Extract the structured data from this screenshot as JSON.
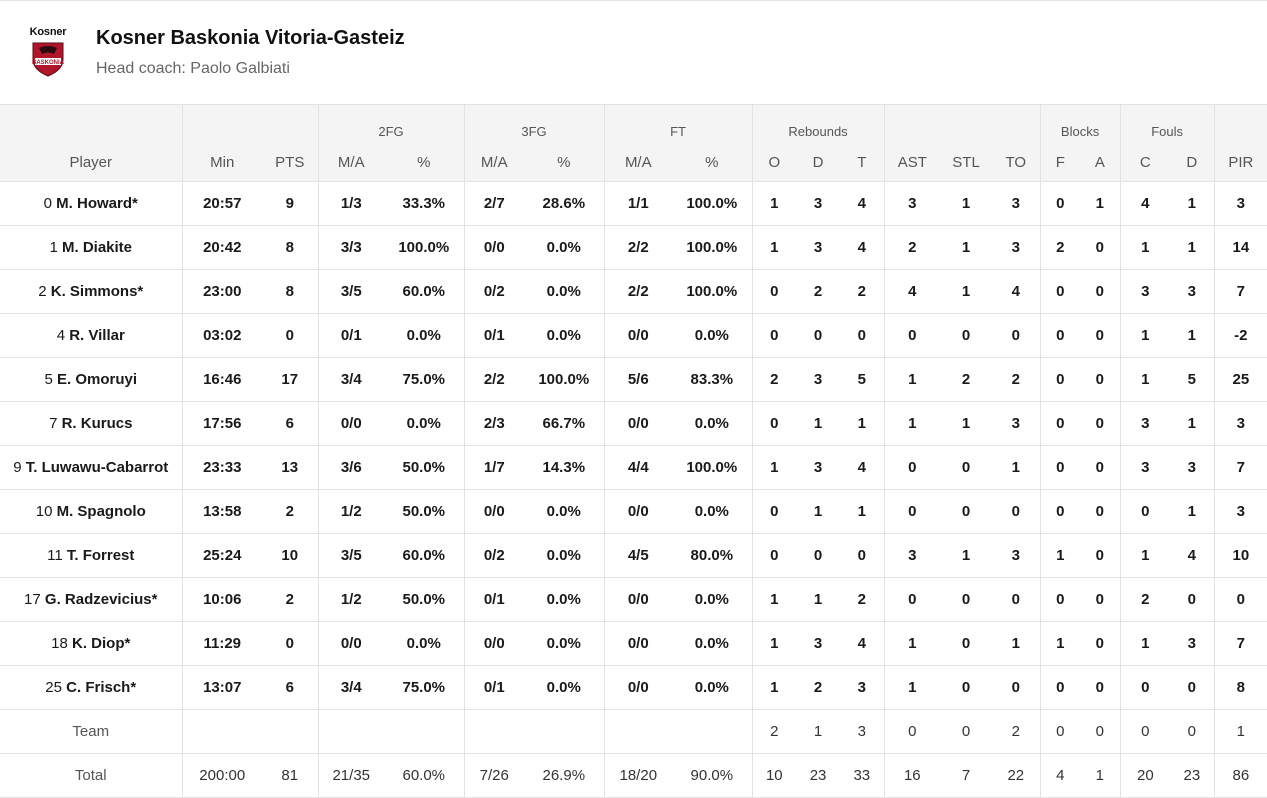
{
  "header": {
    "logo_text": "Kosner",
    "logo_badge_text": "BASKONIA",
    "team_name": "Kosner Baskonia Vitoria-Gasteiz",
    "coach": "Head coach: Paolo Galbiati"
  },
  "colors": {
    "brand": "#b0162b",
    "header_bg": "#f4f4f4",
    "border": "#e2e2e2"
  },
  "groups": {
    "fg2": "2FG",
    "fg3": "3FG",
    "ft": "FT",
    "rebounds": "Rebounds",
    "blocks": "Blocks",
    "fouls": "Fouls"
  },
  "columns": [
    "Player",
    "Min",
    "PTS",
    "M/A",
    "%",
    "M/A",
    "%",
    "M/A",
    "%",
    "O",
    "D",
    "T",
    "AST",
    "STL",
    "TO",
    "F",
    "A",
    "C",
    "D",
    "PIR"
  ],
  "players": [
    {
      "num": "0",
      "name": "M. Howard*",
      "stats": [
        "20:57",
        "9",
        "1/3",
        "33.3%",
        "2/7",
        "28.6%",
        "1/1",
        "100.0%",
        "1",
        "3",
        "4",
        "3",
        "1",
        "3",
        "0",
        "1",
        "4",
        "1",
        "3"
      ]
    },
    {
      "num": "1",
      "name": "M. Diakite",
      "stats": [
        "20:42",
        "8",
        "3/3",
        "100.0%",
        "0/0",
        "0.0%",
        "2/2",
        "100.0%",
        "1",
        "3",
        "4",
        "2",
        "1",
        "3",
        "2",
        "0",
        "1",
        "1",
        "14"
      ]
    },
    {
      "num": "2",
      "name": "K. Simmons*",
      "stats": [
        "23:00",
        "8",
        "3/5",
        "60.0%",
        "0/2",
        "0.0%",
        "2/2",
        "100.0%",
        "0",
        "2",
        "2",
        "4",
        "1",
        "4",
        "0",
        "0",
        "3",
        "3",
        "7"
      ]
    },
    {
      "num": "4",
      "name": "R. Villar",
      "stats": [
        "03:02",
        "0",
        "0/1",
        "0.0%",
        "0/1",
        "0.0%",
        "0/0",
        "0.0%",
        "0",
        "0",
        "0",
        "0",
        "0",
        "0",
        "0",
        "0",
        "1",
        "1",
        "-2"
      ]
    },
    {
      "num": "5",
      "name": "E. Omoruyi",
      "stats": [
        "16:46",
        "17",
        "3/4",
        "75.0%",
        "2/2",
        "100.0%",
        "5/6",
        "83.3%",
        "2",
        "3",
        "5",
        "1",
        "2",
        "2",
        "0",
        "0",
        "1",
        "5",
        "25"
      ]
    },
    {
      "num": "7",
      "name": "R. Kurucs",
      "stats": [
        "17:56",
        "6",
        "0/0",
        "0.0%",
        "2/3",
        "66.7%",
        "0/0",
        "0.0%",
        "0",
        "1",
        "1",
        "1",
        "1",
        "3",
        "0",
        "0",
        "3",
        "1",
        "3"
      ]
    },
    {
      "num": "9",
      "name": "T. Luwawu-Cabarrot",
      "stats": [
        "23:33",
        "13",
        "3/6",
        "50.0%",
        "1/7",
        "14.3%",
        "4/4",
        "100.0%",
        "1",
        "3",
        "4",
        "0",
        "0",
        "1",
        "0",
        "0",
        "3",
        "3",
        "7"
      ]
    },
    {
      "num": "10",
      "name": "M. Spagnolo",
      "stats": [
        "13:58",
        "2",
        "1/2",
        "50.0%",
        "0/0",
        "0.0%",
        "0/0",
        "0.0%",
        "0",
        "1",
        "1",
        "0",
        "0",
        "0",
        "0",
        "0",
        "0",
        "1",
        "3"
      ]
    },
    {
      "num": "11",
      "name": "T. Forrest",
      "stats": [
        "25:24",
        "10",
        "3/5",
        "60.0%",
        "0/2",
        "0.0%",
        "4/5",
        "80.0%",
        "0",
        "0",
        "0",
        "3",
        "1",
        "3",
        "1",
        "0",
        "1",
        "4",
        "10"
      ]
    },
    {
      "num": "17",
      "name": "G. Radzevicius*",
      "stats": [
        "10:06",
        "2",
        "1/2",
        "50.0%",
        "0/1",
        "0.0%",
        "0/0",
        "0.0%",
        "1",
        "1",
        "2",
        "0",
        "0",
        "0",
        "0",
        "0",
        "2",
        "0",
        "0"
      ]
    },
    {
      "num": "18",
      "name": "K. Diop*",
      "stats": [
        "11:29",
        "0",
        "0/0",
        "0.0%",
        "0/0",
        "0.0%",
        "0/0",
        "0.0%",
        "1",
        "3",
        "4",
        "1",
        "0",
        "1",
        "1",
        "0",
        "1",
        "3",
        "7"
      ]
    },
    {
      "num": "25",
      "name": "C. Frisch*",
      "stats": [
        "13:07",
        "6",
        "3/4",
        "75.0%",
        "0/1",
        "0.0%",
        "0/0",
        "0.0%",
        "1",
        "2",
        "3",
        "1",
        "0",
        "0",
        "0",
        "0",
        "0",
        "0",
        "8"
      ]
    }
  ],
  "team_row": {
    "label": "Team",
    "stats": [
      "",
      "",
      "",
      "",
      "",
      "",
      "",
      "",
      "2",
      "1",
      "3",
      "0",
      "0",
      "2",
      "0",
      "0",
      "0",
      "0",
      "1"
    ]
  },
  "total_row": {
    "label": "Total",
    "stats": [
      "200:00",
      "81",
      "21/35",
      "60.0%",
      "7/26",
      "26.9%",
      "18/20",
      "90.0%",
      "10",
      "23",
      "33",
      "16",
      "7",
      "22",
      "4",
      "1",
      "20",
      "23",
      "86"
    ]
  }
}
